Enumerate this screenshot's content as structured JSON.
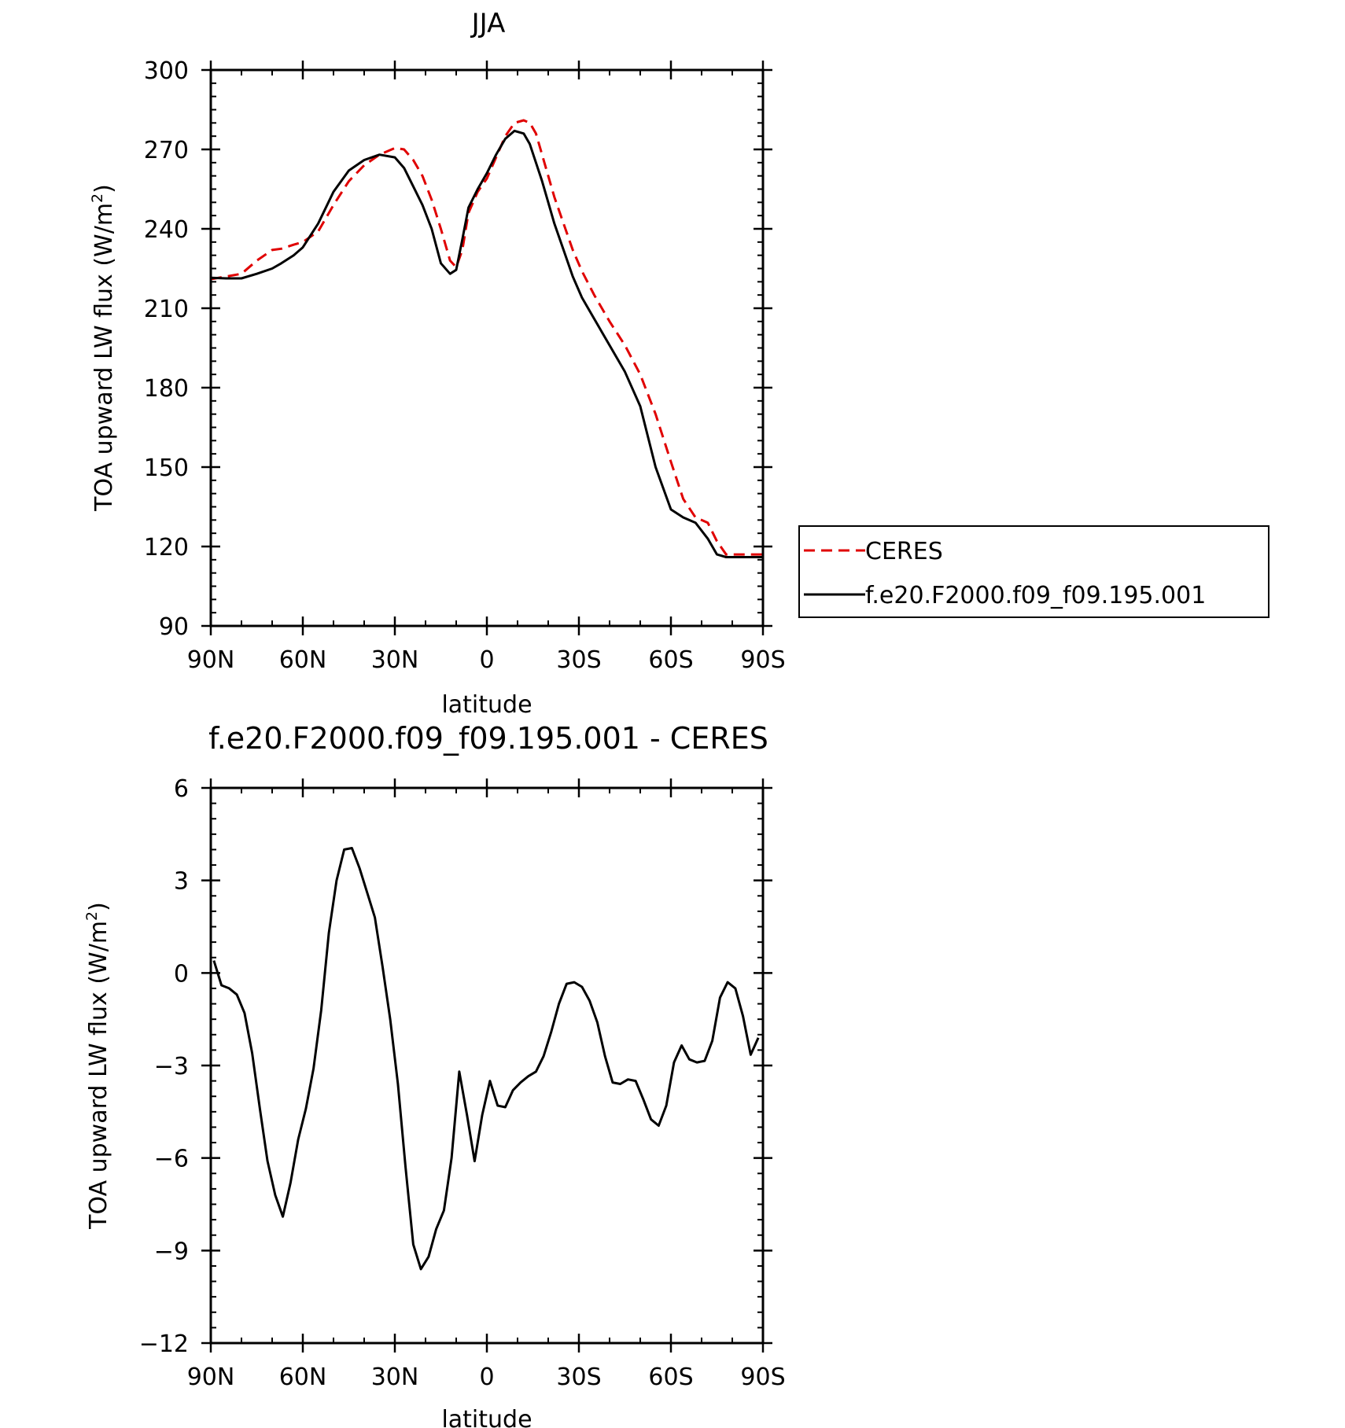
{
  "chart_data": [
    {
      "type": "line",
      "title": "JJA",
      "xlabel": "latitude",
      "ylabel": "TOA upward LW flux (W/m²)",
      "ylabel_parts": {
        "main": "TOA upward LW flux (W/m",
        "sup": "2",
        "tail": ")"
      },
      "x_ticks": [
        -90,
        -60,
        -30,
        0,
        30,
        60,
        90
      ],
      "x_tick_labels": [
        "90N",
        "60N",
        "30N",
        "0",
        "30S",
        "60S",
        "90S"
      ],
      "xlim": [
        -90,
        90
      ],
      "y_ticks": [
        90,
        120,
        150,
        180,
        210,
        240,
        270,
        300
      ],
      "y_tick_labels": [
        "90",
        "120",
        "150",
        "180",
        "210",
        "240",
        "270",
        "300"
      ],
      "ylim": [
        90,
        300
      ],
      "legend_position": "right",
      "series": [
        {
          "name": "CERES",
          "color": "#e00000",
          "dash": "dashed",
          "x": [
            -90,
            -85,
            -80,
            -75,
            -70,
            -67,
            -63,
            -60,
            -55,
            -50,
            -45,
            -40,
            -35,
            -30,
            -27,
            -24,
            -21,
            -18,
            -15,
            -12,
            -10,
            -8,
            -6,
            -3,
            0,
            3,
            6,
            9,
            12,
            14,
            16,
            18,
            20,
            22,
            25,
            28,
            31,
            35,
            40,
            45,
            50,
            55,
            60,
            64,
            68,
            72,
            75,
            78,
            81,
            84,
            87,
            90
          ],
          "y": [
            221,
            222,
            223,
            228,
            232,
            232.5,
            234,
            235,
            239,
            249,
            258,
            264,
            268,
            270.5,
            270,
            266,
            260,
            251,
            240,
            228,
            225.5,
            232,
            246,
            254,
            259,
            267,
            275,
            280,
            281,
            280,
            276,
            268,
            260,
            252,
            242,
            232,
            224,
            215,
            205,
            196,
            185,
            170,
            152,
            138,
            131,
            129,
            122,
            117,
            117,
            117,
            117,
            117
          ]
        },
        {
          "name": "f.e20.F2000.f09_f09.195.001",
          "color": "#000000",
          "dash": "solid",
          "x": [
            -90,
            -85,
            -80,
            -75,
            -70,
            -67,
            -63,
            -60,
            -55,
            -50,
            -45,
            -40,
            -35,
            -30,
            -27,
            -24,
            -21,
            -18,
            -15,
            -12,
            -10,
            -8,
            -6,
            -3,
            0,
            3,
            6,
            9,
            12,
            14,
            16,
            18,
            20,
            22,
            25,
            28,
            31,
            35,
            40,
            45,
            50,
            55,
            60,
            64,
            68,
            72,
            75,
            78,
            81,
            84,
            87,
            90
          ],
          "y": [
            221.5,
            221.3,
            221.3,
            223,
            225,
            227,
            230,
            233,
            242,
            254,
            262,
            266,
            268,
            267,
            263,
            256,
            249,
            240,
            227,
            223,
            224.5,
            236,
            248,
            255,
            261,
            268,
            274,
            277,
            276,
            272,
            265,
            258,
            250,
            242,
            232,
            222,
            214,
            206,
            196,
            186,
            173,
            150,
            134,
            131,
            129,
            123,
            117,
            116,
            116,
            116,
            116,
            116
          ]
        }
      ]
    },
    {
      "type": "line",
      "title": "f.e20.F2000.f09_f09.195.001 - CERES",
      "xlabel": "latitude",
      "ylabel": "TOA upward LW flux (W/m²)",
      "ylabel_parts": {
        "main": "TOA upward LW flux (W/m",
        "sup": "2",
        "tail": ")"
      },
      "x_ticks": [
        -90,
        -60,
        -30,
        0,
        30,
        60,
        90
      ],
      "x_tick_labels": [
        "90N",
        "60N",
        "30N",
        "0",
        "30S",
        "60S",
        "90S"
      ],
      "xlim": [
        -90,
        90
      ],
      "y_ticks": [
        -12,
        -9,
        -6,
        -3,
        0,
        3,
        6
      ],
      "y_tick_labels": [
        "−12",
        "−9",
        "−6",
        "−3",
        "0",
        "3",
        "6"
      ],
      "ylim": [
        -12,
        6
      ],
      "series": [
        {
          "color": "#000000",
          "dash": "solid",
          "x": [
            -89,
            -86.5,
            -84,
            -81.5,
            -79,
            -76.5,
            -74,
            -71.5,
            -69,
            -66.5,
            -64,
            -61.5,
            -59,
            -56.5,
            -54,
            -51.5,
            -49,
            -46.5,
            -44,
            -41.5,
            -39,
            -36.5,
            -34,
            -31.5,
            -29,
            -26.5,
            -24,
            -21.5,
            -19,
            -16.5,
            -14,
            -11.5,
            -9,
            -6.5,
            -4,
            -1.5,
            1,
            3.5,
            6,
            8.5,
            11,
            13.5,
            16,
            18.5,
            21,
            23.5,
            26,
            28.5,
            31,
            33.5,
            36,
            38.5,
            41,
            43.5,
            46,
            48.5,
            51,
            53.5,
            56,
            58.5,
            61,
            63.5,
            66,
            68.5,
            71,
            73.5,
            76,
            78.5,
            81,
            83.5,
            86,
            88.5
          ],
          "y": [
            0.4,
            -0.4,
            -0.5,
            -0.7,
            -1.3,
            -2.6,
            -4.4,
            -6.1,
            -7.2,
            -7.9,
            -6.8,
            -5.4,
            -4.4,
            -3.1,
            -1.2,
            1.3,
            3.0,
            4.0,
            4.05,
            3.4,
            2.6,
            1.8,
            0.2,
            -1.5,
            -3.6,
            -6.3,
            -8.8,
            -9.6,
            -9.2,
            -8.3,
            -7.7,
            -6.0,
            -3.2,
            -4.6,
            -6.1,
            -4.6,
            -3.5,
            -4.3,
            -4.35,
            -3.8,
            -3.55,
            -3.35,
            -3.2,
            -2.7,
            -1.9,
            -1.0,
            -0.35,
            -0.3,
            -0.45,
            -0.9,
            -1.6,
            -2.7,
            -3.55,
            -3.6,
            -3.45,
            -3.5,
            -4.1,
            -4.75,
            -4.95,
            -4.3,
            -2.9,
            -2.35,
            -2.8,
            -2.9,
            -2.85,
            -2.2,
            -0.8,
            -0.3,
            -0.5,
            -1.4,
            -2.65,
            -2.1
          ]
        }
      ]
    }
  ]
}
